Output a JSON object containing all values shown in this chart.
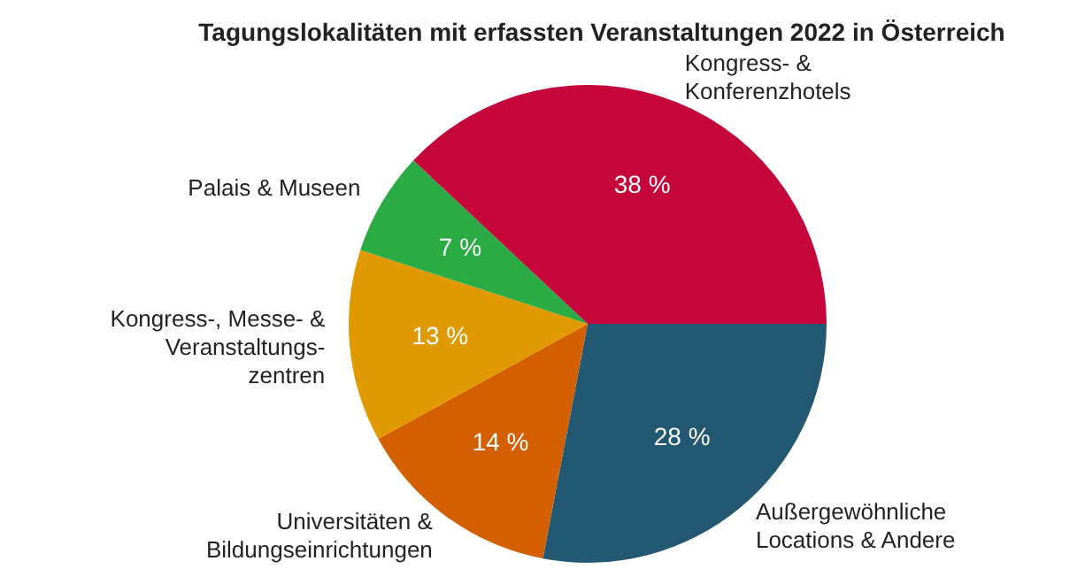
{
  "chart_data": {
    "type": "pie",
    "title": "Tagungslokalitäten mit erfassten Veranstaltungen 2022 in Österreich",
    "categories": [
      "Außergewöhnliche\nLocations & Andere",
      "Universitäten &\nBildungseinrichtungen",
      "Kongress-, Messe- &\nVeranstaltungs-\nzentren",
      "Palais & Museen",
      "Kongress- &\nKonferenzhotels"
    ],
    "values": [
      28,
      14,
      13,
      7,
      38
    ],
    "value_labels": [
      "28 %",
      "14 %",
      "13 %",
      "7 %",
      "38 %"
    ],
    "colors": [
      "#225872",
      "#d45f00",
      "#e09a00",
      "#2aab44",
      "#c4063a"
    ],
    "legend": false
  }
}
